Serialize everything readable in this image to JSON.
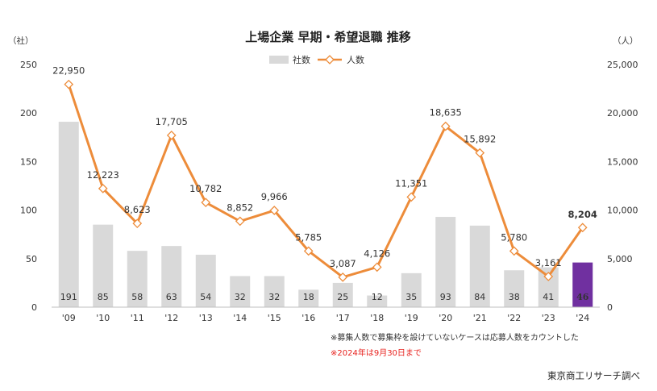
{
  "chart_data": {
    "type": "bar+line",
    "title": "上場企業 早期・希望退職 推移",
    "left_unit": "（社）",
    "right_unit": "（人）",
    "categories": [
      "'09",
      "'10",
      "'11",
      "'12",
      "'13",
      "'14",
      "'15",
      "'16",
      "'17",
      "'18",
      "'19",
      "'20",
      "'21",
      "'22",
      "'23",
      "'24"
    ],
    "series": [
      {
        "name": "社数",
        "kind": "bar",
        "axis": "left",
        "color": "#d9d9d9",
        "highlight_color": "#7030a0",
        "values": [
          191,
          85,
          58,
          63,
          54,
          32,
          32,
          18,
          25,
          12,
          35,
          93,
          84,
          38,
          41,
          46
        ]
      },
      {
        "name": "人数",
        "kind": "line",
        "axis": "right",
        "color": "#ed8c3a",
        "values": [
          22950,
          12223,
          8623,
          17705,
          10782,
          8852,
          9966,
          5785,
          3087,
          4126,
          11351,
          18635,
          15892,
          5780,
          3161,
          8204
        ],
        "labels": [
          "22,950",
          "12,223",
          "8,623",
          "17,705",
          "10,782",
          "8,852",
          "9,966",
          "5,785",
          "3,087",
          "4,126",
          "11,351",
          "18,635",
          "15,892",
          "5,780",
          "3,161",
          "8,204"
        ]
      }
    ],
    "left_axis": {
      "min": 0,
      "max": 250,
      "ticks": [
        0,
        50,
        100,
        150,
        200,
        250
      ],
      "tick_labels": [
        "0",
        "50",
        "100",
        "150",
        "200",
        "250"
      ]
    },
    "right_axis": {
      "min": 0,
      "max": 25000,
      "ticks": [
        0,
        5000,
        10000,
        15000,
        20000,
        25000
      ],
      "tick_labels": [
        "0",
        "5,000",
        "10,000",
        "15,000",
        "20,000",
        "25,000"
      ]
    },
    "grid": false,
    "legend": "top-center",
    "notes": [
      {
        "text": "※募集人数で募集枠を設けていないケースは応募人数をカウントした",
        "color": "#333333"
      },
      {
        "text": "※2024年は9月30日まで",
        "color": "#e8231f"
      }
    ],
    "source": "東京商工リサーチ調べ"
  }
}
